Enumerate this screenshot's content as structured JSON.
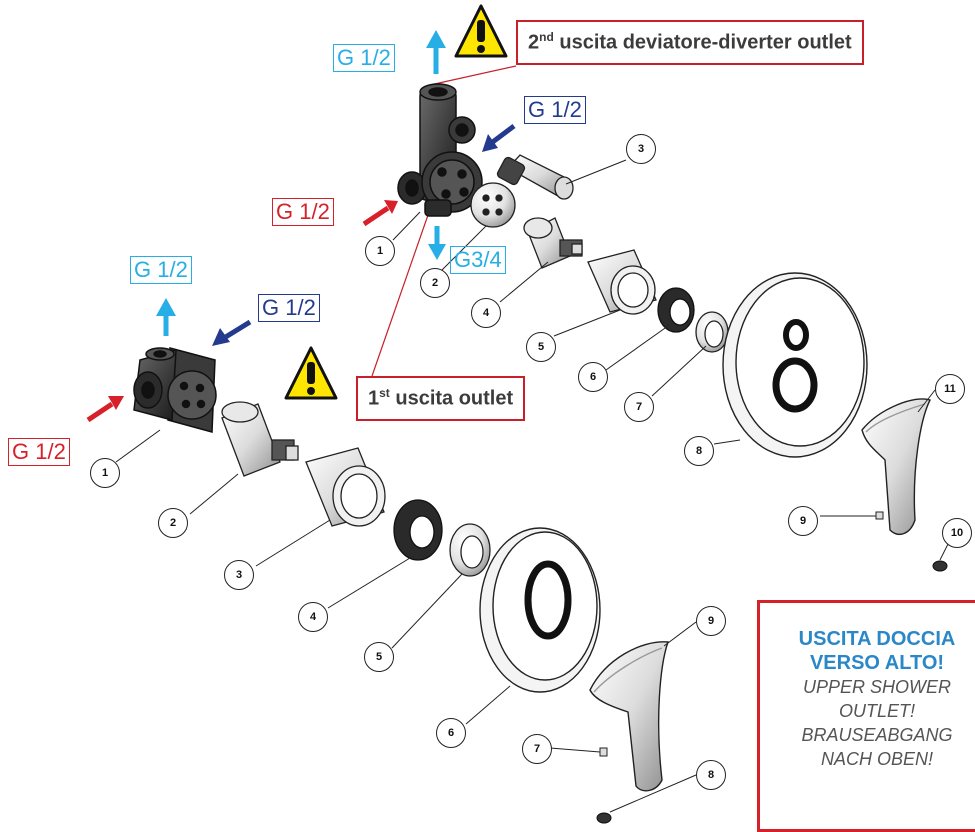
{
  "colors": {
    "cyan": "#27aee6",
    "navy": "#243a8f",
    "red": "#d7202a",
    "warning": "#ffe600"
  },
  "connections": {
    "top_outlet": "G 1/2",
    "top_inlet_cold": "G 1/2",
    "top_inlet_hot": "G 1/2",
    "top_bottom_outlet": "G3/4",
    "bottom_outlet": "G 1/2",
    "bottom_inlet_cold": "G 1/2",
    "bottom_inlet_hot": "G 1/2"
  },
  "callouts": {
    "second_outlet": {
      "prefix": "2",
      "sup": "nd",
      "text": " uscita deviatore-diverter outlet"
    },
    "first_outlet": {
      "prefix": "1",
      "sup": "st",
      "text": " uscita outlet"
    }
  },
  "note": {
    "line1": "USCITA DOCCIA",
    "line2": "VERSO ALTO!",
    "line3": "UPPER SHOWER",
    "line4": "OUTLET!",
    "line5": "BRAUSEABGANG",
    "line6": "NACH OBEN!"
  },
  "icons": {
    "warning": "warning-triangle-icon",
    "arrow": "flow-arrow-icon"
  },
  "part_numbers_top": [
    "1",
    "2",
    "3",
    "4",
    "5",
    "6",
    "7",
    "8",
    "9",
    "10",
    "11"
  ],
  "part_numbers_bottom": [
    "1",
    "2",
    "3",
    "4",
    "5",
    "6",
    "7",
    "8",
    "9"
  ]
}
